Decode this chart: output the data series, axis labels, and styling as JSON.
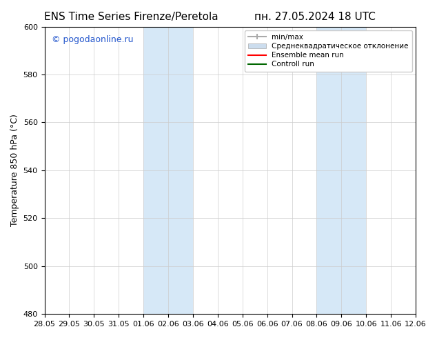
{
  "title_left": "ENS Time Series Firenze/Peretola",
  "title_right": "пн. 27.05.2024 18 UTC",
  "ylabel": "Temperature 850 hPa (°C)",
  "ylim": [
    480,
    600
  ],
  "yticks": [
    480,
    500,
    520,
    540,
    560,
    580,
    600
  ],
  "x_start": "2024-05-28",
  "x_end": "2024-06-12",
  "xtick_labels": [
    "28.05",
    "29.05",
    "30.05",
    "31.05",
    "01.06",
    "02.06",
    "03.06",
    "04.06",
    "05.06",
    "06.06",
    "07.06",
    "08.06",
    "09.06",
    "10.06",
    "11.06",
    "12.06"
  ],
  "shaded_bands": [
    {
      "x_start": "2024-06-01",
      "x_end": "2024-06-03"
    },
    {
      "x_start": "2024-06-08",
      "x_end": "2024-06-10"
    }
  ],
  "shaded_color": "#d6e8f7",
  "watermark_text": "© pogodaonline.ru",
  "watermark_color": "#2255cc",
  "legend_entries": [
    {
      "label": "min/max",
      "color": "#aaaaaa",
      "type": "line_with_bar"
    },
    {
      "label": "Среднеквадратическое отклонение",
      "color": "#ccddee",
      "type": "patch"
    },
    {
      "label": "Ensemble mean run",
      "color": "#ff0000",
      "type": "line"
    },
    {
      "label": "Controll run",
      "color": "#006600",
      "type": "line"
    }
  ],
  "bg_color": "#ffffff",
  "plot_bg_color": "#ffffff",
  "grid_color": "#cccccc",
  "spine_color": "#000000",
  "title_fontsize": 11,
  "tick_fontsize": 8,
  "ylabel_fontsize": 9
}
